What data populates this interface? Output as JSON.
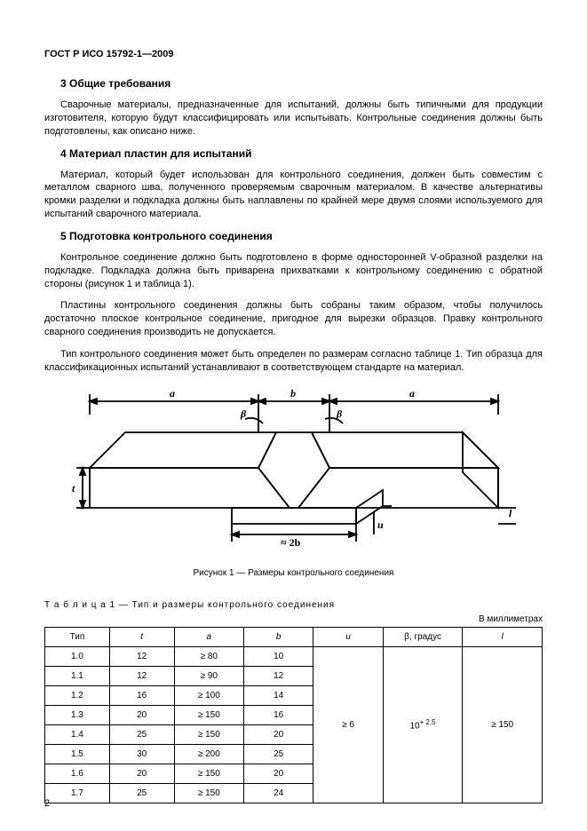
{
  "header": "ГОСТ Р ИСО 15792-1—2009",
  "sections": {
    "s3": {
      "heading": "3  Общие требования",
      "p1": "Сварочные материалы, предназначенные для испытаний, должны быть типичными для продукции изготовителя, которую будут классифицировать или испытывать. Контрольные соединения должны быть подготовлены, как описано ниже."
    },
    "s4": {
      "heading": "4  Материал пластин для испытаний",
      "p1": "Материал, который будет использован для контрольного соединения, должен быть совместим с металлом сварного шва, полученного проверяемым сварочным материалом. В качестве альтернативы кромки разделки и подкладка должны быть наплавлены по крайней мере двумя слоями используемого для испытаний сварочного материала."
    },
    "s5": {
      "heading": "5  Подготовка контрольного соединения",
      "p1": "Контрольное соединение должно быть подготовлено в форме односторонней V-образной разделки на подкладке. Подкладка должна быть приварена прихватками к контрольному соединению с обратной стороны (рисунок 1 и таблица 1).",
      "p2": "Пластины контрольного соединения должны быть собраны таким образом, чтобы получилось достаточно плоское контрольное соединение, пригодное для вырезки образцов. Правку контрольного сварного соединения производить не допускается.",
      "p3": "Тип контрольного соединения может быть определен по размерам согласно таблице 1. Тип образца для классификационных испытаний устанавливают в соответствующем стандарте на материал."
    }
  },
  "figure": {
    "caption": "Рисунок 1 — Размеры контрольного соединения",
    "labels": {
      "a": "a",
      "b": "b",
      "beta": "β",
      "t": "t",
      "l": "l",
      "u": "u",
      "two_b": "≈ 2b"
    }
  },
  "table": {
    "caption_prefix": "Т а б л и ц а",
    "caption_rest": "  1 — Тип и размеры контрольного соединения",
    "units": "В миллиметрах",
    "columns": [
      "Тип",
      "t",
      "a",
      "b",
      "u",
      "β, градус",
      "l"
    ],
    "rows": [
      [
        "1.0",
        "12",
        "≥ 80",
        "10"
      ],
      [
        "1.1",
        "12",
        "≥ 90",
        "12"
      ],
      [
        "1.2",
        "16",
        "≥ 100",
        "14"
      ],
      [
        "1.3",
        "20",
        "≥ 150",
        "16"
      ],
      [
        "1.4",
        "25",
        "≥ 150",
        "20"
      ],
      [
        "1.5",
        "30",
        "≥ 200",
        "25"
      ],
      [
        "1.6",
        "20",
        "≥ 150",
        "20"
      ],
      [
        "1.7",
        "25",
        "≥ 150",
        "24"
      ]
    ],
    "merged": {
      "u": "≥ 6",
      "beta": "10",
      "beta_sup": "+ 2.5",
      "l": "≥ 150"
    },
    "col_widths": [
      "13%",
      "13%",
      "14%",
      "14%",
      "14%",
      "16%",
      "16%"
    ]
  },
  "page_number": "2"
}
